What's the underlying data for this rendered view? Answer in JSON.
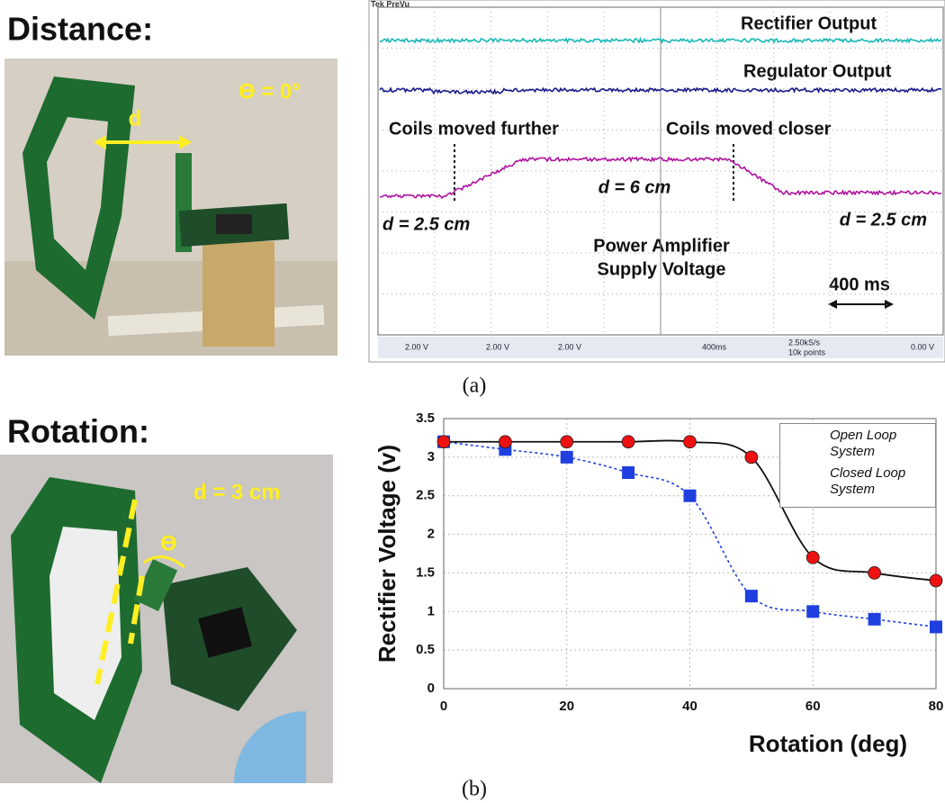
{
  "labels": {
    "distance": "Distance:",
    "rotation": "Rotation:",
    "a": "(a)",
    "b": "(b)"
  },
  "photo_top": {
    "theta": "ϴ = 0°",
    "d": "d"
  },
  "photo_bottom": {
    "d": "d = 3 cm",
    "theta": "ϴ"
  },
  "scope": {
    "brand": "Tek PreVu",
    "rectifier": "Rectifier Output",
    "regulator": "Regulator Output",
    "further": "Coils moved further",
    "closer": "Coils moved closer",
    "d_left": "d = 2.5 cm",
    "d_mid": "d = 6 cm",
    "d_right": "d = 2.5 cm",
    "pa_line1": "Power Amplifier",
    "pa_line2": "Supply Voltage",
    "timebase": "400 ms",
    "bar": {
      "ch1": "2.00 V",
      "ch2": "2.00 V",
      "ch3": "2.00 V",
      "time": "400ms",
      "rate": "2.50kS/s",
      "points": "10k points",
      "trig": "0.00 V"
    }
  },
  "chart_data": {
    "type": "line",
    "xlabel": "Rotation (deg)",
    "ylabel": "Rectifier Voltage (v)",
    "x": [
      0,
      10,
      20,
      30,
      40,
      50,
      60,
      70,
      80
    ],
    "series": [
      {
        "name": "Open Loop System",
        "color": "#1f3fe0",
        "marker": "square",
        "linestyle": "dotted",
        "values": [
          3.2,
          3.1,
          3.0,
          2.8,
          2.5,
          1.2,
          1.0,
          0.9,
          0.8
        ]
      },
      {
        "name": "Closed Loop System",
        "color": "#ee1111",
        "marker": "circle",
        "linestyle": "solid",
        "values": [
          3.2,
          3.2,
          3.2,
          3.2,
          3.2,
          3.0,
          1.7,
          1.5,
          1.4
        ]
      }
    ],
    "xlim": [
      0,
      80
    ],
    "xticks": [
      0,
      20,
      40,
      60,
      80
    ],
    "ylim": [
      0,
      3.5
    ],
    "yticks": [
      0,
      0.5,
      1,
      1.5,
      2,
      2.5,
      3,
      3.5
    ],
    "grid": true,
    "legend": "upper right"
  }
}
